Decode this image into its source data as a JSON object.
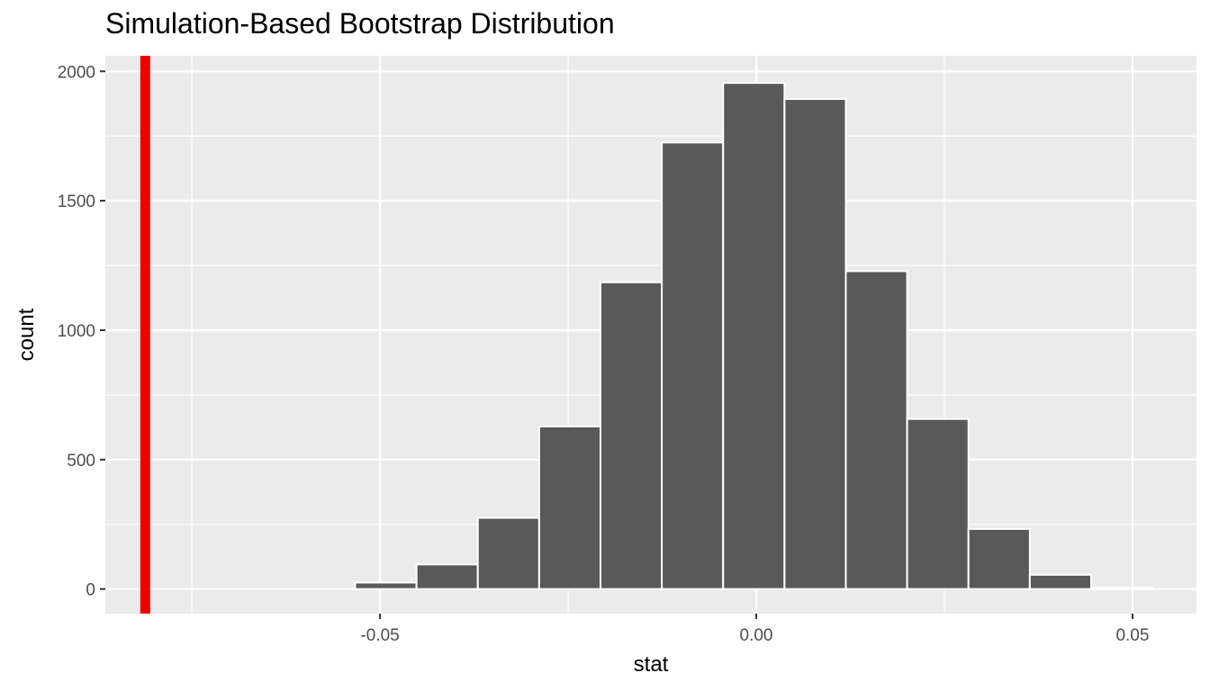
{
  "chart_data": {
    "type": "bar",
    "title": "Simulation-Based Bootstrap Distribution",
    "xlabel": "stat",
    "ylabel": "count",
    "xlim": [
      -0.0865,
      0.0585
    ],
    "ylim": [
      -95,
      2060
    ],
    "x_ticks": [
      -0.05,
      0.0,
      0.05
    ],
    "x_tick_labels": [
      "-0.05",
      "0.00",
      "0.05"
    ],
    "y_ticks": [
      0,
      500,
      1000,
      1500,
      2000
    ],
    "y_tick_labels": [
      "0",
      "500",
      "1000",
      "1500",
      "2000"
    ],
    "bin_width": 0.00815,
    "bins": [
      {
        "x_min": -0.0696,
        "x_max": -0.06145,
        "count": 0
      },
      {
        "x_min": -0.06145,
        "x_max": -0.0533,
        "count": 0
      },
      {
        "x_min": -0.0533,
        "x_max": -0.04515,
        "count": 25
      },
      {
        "x_min": -0.04515,
        "x_max": -0.037,
        "count": 95
      },
      {
        "x_min": -0.037,
        "x_max": -0.02885,
        "count": 275
      },
      {
        "x_min": -0.02885,
        "x_max": -0.0207,
        "count": 628
      },
      {
        "x_min": -0.0207,
        "x_max": -0.01255,
        "count": 1185
      },
      {
        "x_min": -0.01255,
        "x_max": -0.0044,
        "count": 1725
      },
      {
        "x_min": -0.0044,
        "x_max": 0.00375,
        "count": 1955
      },
      {
        "x_min": 0.00375,
        "x_max": 0.0119,
        "count": 1893
      },
      {
        "x_min": 0.0119,
        "x_max": 0.02005,
        "count": 1228
      },
      {
        "x_min": 0.02005,
        "x_max": 0.0282,
        "count": 657
      },
      {
        "x_min": 0.0282,
        "x_max": 0.03635,
        "count": 232
      },
      {
        "x_min": 0.03635,
        "x_max": 0.0445,
        "count": 55
      },
      {
        "x_min": 0.0445,
        "x_max": 0.05265,
        "count": 5
      }
    ],
    "observed_stat": -0.0812,
    "grid": true,
    "colors": {
      "panel_background": "#EBEBEB",
      "gridline": "#FFFFFF",
      "bar_fill": "#595959",
      "bar_outline": "#FFFFFF",
      "observed_line": "#EE0000",
      "tick_text": "#4D4D4D"
    }
  }
}
